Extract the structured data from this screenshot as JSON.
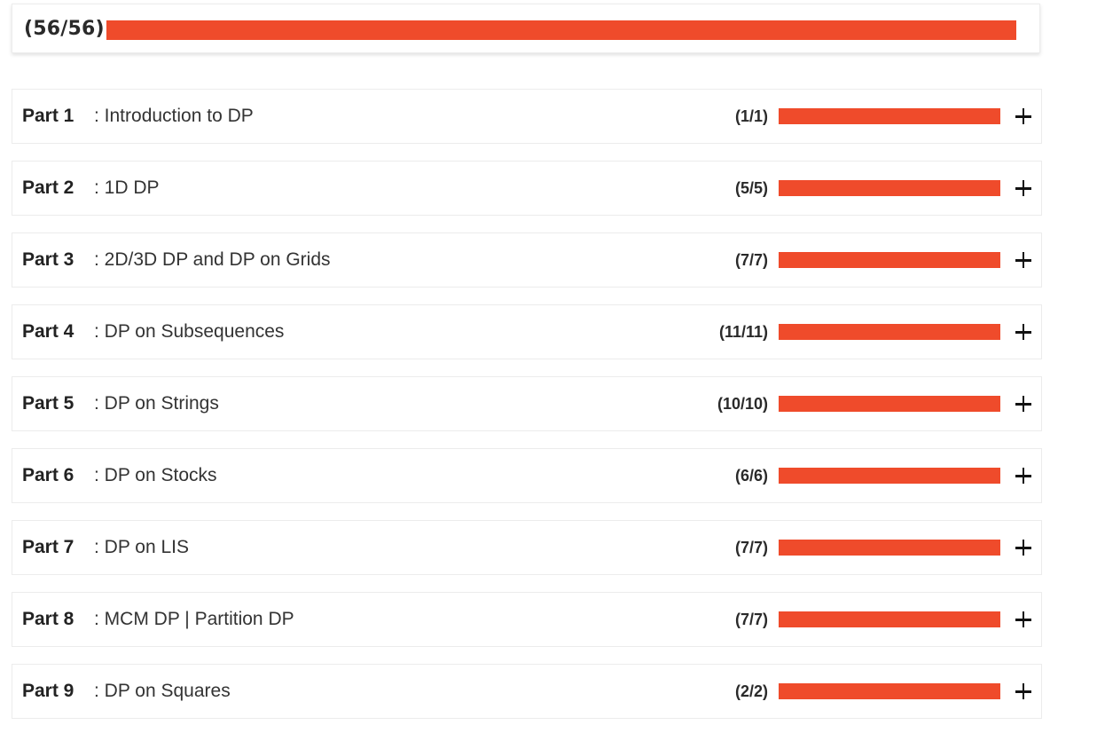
{
  "overall": {
    "count_label": "(56/56)",
    "completed": 56,
    "total": 56,
    "progress_fraction": 1.0
  },
  "colors": {
    "progress_fill": "#ef4b2b",
    "progress_track": "#e9e9e9"
  },
  "icons": {
    "expand": "plus-icon"
  },
  "parts": [
    {
      "label": "Part 1",
      "title": ": Introduction to DP",
      "count_label": "(1/1)",
      "progress_fraction": 1.0
    },
    {
      "label": "Part 2",
      "title": ": 1D DP",
      "count_label": "(5/5)",
      "progress_fraction": 1.0
    },
    {
      "label": "Part 3",
      "title": ": 2D/3D DP and DP on Grids",
      "count_label": "(7/7)",
      "progress_fraction": 1.0
    },
    {
      "label": "Part 4",
      "title": ": DP on Subsequences",
      "count_label": "(11/11)",
      "progress_fraction": 1.0
    },
    {
      "label": "Part 5",
      "title": ": DP on Strings",
      "count_label": "(10/10)",
      "progress_fraction": 1.0
    },
    {
      "label": "Part 6",
      "title": ": DP on Stocks",
      "count_label": "(6/6)",
      "progress_fraction": 1.0
    },
    {
      "label": "Part 7",
      "title": ": DP on LIS",
      "count_label": "(7/7)",
      "progress_fraction": 1.0
    },
    {
      "label": "Part 8",
      "title": ": MCM DP | Partition DP",
      "count_label": "(7/7)",
      "progress_fraction": 1.0
    },
    {
      "label": "Part 9",
      "title": ": DP on Squares",
      "count_label": "(2/2)",
      "progress_fraction": 1.0
    }
  ]
}
